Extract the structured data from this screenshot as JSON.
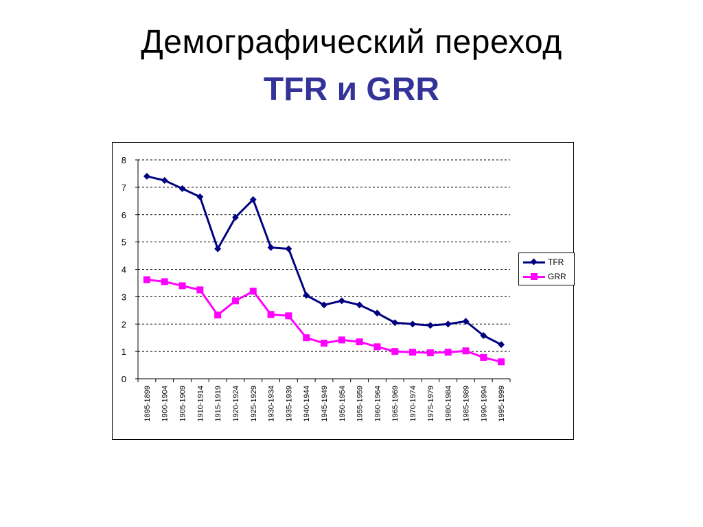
{
  "slide": {
    "title": "Демографический переход",
    "subtitle": "TFR и GRR"
  },
  "chart_data": {
    "type": "line",
    "title": "",
    "xlabel": "",
    "ylabel": "",
    "ylim": [
      0,
      8
    ],
    "yticks": [
      0,
      1,
      2,
      3,
      4,
      5,
      6,
      7,
      8
    ],
    "grid": true,
    "legend_position": "right",
    "categories": [
      "1895-1899",
      "1900-1904",
      "1905-1909",
      "1910-1914",
      "1915-1919",
      "1920-1924",
      "1925-1929",
      "1930-1934",
      "1935-1939",
      "1940-1944",
      "1945-1949",
      "1950-1954",
      "1955-1959",
      "1960-1964",
      "1965-1969",
      "1970-1974",
      "1975-1979",
      "1980-1984",
      "1985-1989",
      "1990-1994",
      "1995-1999"
    ],
    "series": [
      {
        "name": "TFR",
        "color": "#000080",
        "marker": "diamond",
        "values": [
          7.4,
          7.25,
          6.95,
          6.65,
          4.75,
          5.9,
          6.55,
          4.8,
          4.75,
          3.05,
          2.7,
          2.85,
          2.7,
          2.4,
          2.05,
          2.0,
          1.95,
          2.0,
          2.1,
          1.58,
          1.25
        ]
      },
      {
        "name": "GRR",
        "color": "#ff00ff",
        "marker": "square",
        "values": [
          3.62,
          3.55,
          3.4,
          3.25,
          2.33,
          2.85,
          3.2,
          2.35,
          2.3,
          1.5,
          1.3,
          1.42,
          1.35,
          1.17,
          1.0,
          0.97,
          0.95,
          0.97,
          1.02,
          0.78,
          0.62
        ]
      }
    ]
  }
}
